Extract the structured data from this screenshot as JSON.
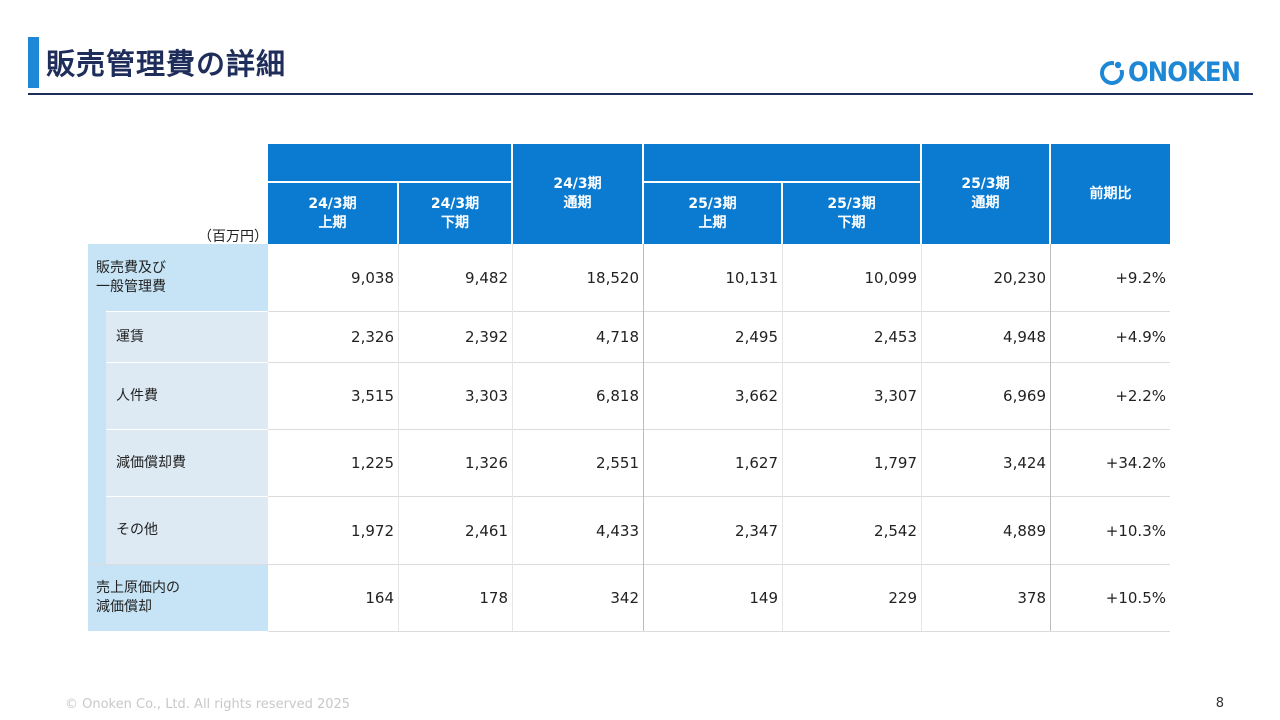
{
  "title": "販売管理費の詳細",
  "logo_text": "ONOKEN",
  "unit": "（百万円）",
  "columns": [
    {
      "line1": "24/3期",
      "line2": "上期"
    },
    {
      "line1": "24/3期",
      "line2": "下期"
    },
    {
      "line1": "24/3期",
      "line2": "通期"
    },
    {
      "line1": "25/3期",
      "line2": "上期"
    },
    {
      "line1": "25/3期",
      "line2": "下期"
    },
    {
      "line1": "25/3期",
      "line2": "通期"
    },
    {
      "line1": "前期比",
      "line2": ""
    }
  ],
  "rows": [
    {
      "label1": "販売費及び",
      "label2": "一般管理費",
      "values": [
        "9,038",
        "9,482",
        "18,520",
        "10,131",
        "10,099",
        "20,230",
        "+9.2%"
      ]
    },
    {
      "label1": "運賃",
      "label2": "",
      "values": [
        "2,326",
        "2,392",
        "4,718",
        "2,495",
        "2,453",
        "4,948",
        "+4.9%"
      ]
    },
    {
      "label1": "人件費",
      "label2": "",
      "values": [
        "3,515",
        "3,303",
        "6,818",
        "3,662",
        "3,307",
        "6,969",
        "+2.2%"
      ]
    },
    {
      "label1": "減価償却費",
      "label2": "",
      "values": [
        "1,225",
        "1,326",
        "2,551",
        "1,627",
        "1,797",
        "3,424",
        "+34.2%"
      ]
    },
    {
      "label1": "その他",
      "label2": "",
      "values": [
        "1,972",
        "2,461",
        "4,433",
        "2,347",
        "2,542",
        "4,889",
        "+10.3%"
      ]
    },
    {
      "label1": "売上原価内の",
      "label2": "減価償却",
      "values": [
        "164",
        "178",
        "342",
        "149",
        "229",
        "378",
        "+10.5%"
      ]
    }
  ],
  "footer": "© Onoken Co., Ltd. All rights reserved 2025",
  "page_number": "8",
  "colors": {
    "header_blue": "#0b7bd1",
    "label_light_blue": "#c6e4f6",
    "title_navy": "#1f2d5a"
  }
}
